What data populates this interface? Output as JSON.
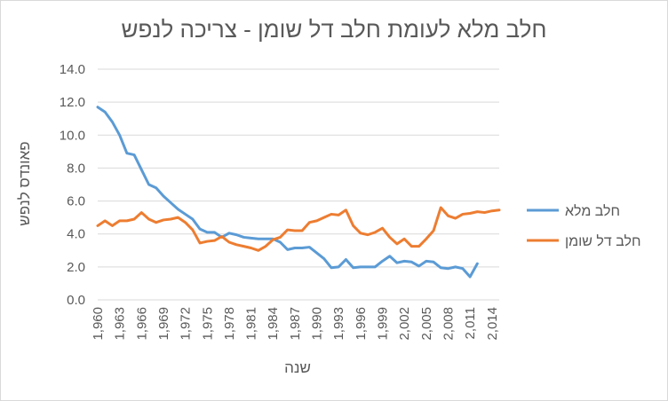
{
  "chart_data": {
    "type": "line",
    "title": "חלב מלא לעומת חלב דל שומן - צריכה לנפש",
    "xlabel": "שנה",
    "ylabel": "פאונדס לנפש",
    "ylim": [
      0,
      14
    ],
    "yticks": [
      "0.0",
      "2.0",
      "4.0",
      "6.0",
      "8.0",
      "10.0",
      "12.0",
      "14.0"
    ],
    "xlim": [
      1960,
      2015
    ],
    "xticks": [
      "1,960",
      "1,963",
      "1,966",
      "1,969",
      "1,972",
      "1,975",
      "1,978",
      "1,981",
      "1,984",
      "1,987",
      "1,990",
      "1,993",
      "1,996",
      "1,999",
      "2,002",
      "2,005",
      "2,008",
      "2,011",
      "2,014"
    ],
    "grid": "horizontal",
    "legend": "right",
    "x": [
      1960,
      1961,
      1962,
      1963,
      1964,
      1965,
      1966,
      1967,
      1968,
      1969,
      1970,
      1971,
      1972,
      1973,
      1974,
      1975,
      1976,
      1977,
      1978,
      1979,
      1980,
      1981,
      1982,
      1983,
      1984,
      1985,
      1986,
      1987,
      1988,
      1989,
      1990,
      1991,
      1992,
      1993,
      1994,
      1995,
      1996,
      1997,
      1998,
      1999,
      2000,
      2001,
      2002,
      2003,
      2004,
      2005,
      2006,
      2007,
      2008,
      2009,
      2010,
      2011,
      2012,
      2013,
      2014,
      2015
    ],
    "series": [
      {
        "name": "חלב מלא",
        "color": "#5B9BD5",
        "values": [
          11.7,
          11.4,
          10.8,
          10.0,
          8.9,
          8.8,
          7.9,
          7.0,
          6.8,
          6.3,
          5.9,
          5.5,
          5.2,
          4.9,
          4.3,
          4.1,
          4.1,
          3.8,
          4.05,
          3.95,
          3.8,
          3.75,
          3.7,
          3.7,
          3.7,
          3.5,
          3.05,
          3.15,
          3.15,
          3.2,
          2.85,
          2.5,
          1.95,
          2.0,
          2.45,
          1.95,
          2.0,
          2.0,
          2.0,
          2.35,
          2.65,
          2.25,
          2.35,
          2.3,
          2.05,
          2.35,
          2.3,
          1.95,
          1.9,
          2.0,
          1.9,
          1.4,
          2.2,
          null,
          null,
          null
        ]
      },
      {
        "name": "חלב דל שומן",
        "color": "#ED7D31",
        "values": [
          4.5,
          4.8,
          4.5,
          4.8,
          4.8,
          4.9,
          5.3,
          4.9,
          4.7,
          4.85,
          4.9,
          5.0,
          4.7,
          4.25,
          3.45,
          3.55,
          3.6,
          3.85,
          3.5,
          3.35,
          3.25,
          3.15,
          3.0,
          3.25,
          3.65,
          3.8,
          4.25,
          4.2,
          4.2,
          4.7,
          4.8,
          5.0,
          5.2,
          5.15,
          5.45,
          4.5,
          4.05,
          3.95,
          4.1,
          4.35,
          3.8,
          3.4,
          3.7,
          3.25,
          3.25,
          3.7,
          4.2,
          5.6,
          5.1,
          4.95,
          5.2,
          5.25,
          5.35,
          5.3,
          5.4,
          5.45
        ]
      }
    ]
  }
}
